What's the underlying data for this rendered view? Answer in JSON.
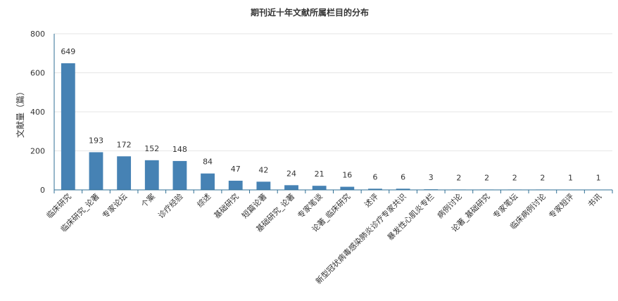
{
  "chart_data": {
    "type": "bar",
    "title": "期刊近十年文献所属栏目的分布",
    "ylabel": "文献量（篇）",
    "xlabel": "",
    "ylim": [
      0,
      800
    ],
    "yticks": [
      0,
      200,
      400,
      600,
      800
    ],
    "grid": true,
    "bar_color": "#4682b4",
    "categories": [
      "临床研究",
      "临床研究_论著",
      "专家论坛",
      "个案",
      "诊疗经验",
      "综述",
      "基础研究",
      "短篇论著",
      "基础研究_论著",
      "专家笔谈",
      "论著_临床研究",
      "述评",
      "新型冠状病毒感染肺炎诊疗专家共识",
      "暴发性心肌炎专栏",
      "病例讨论",
      "论著_基础研究",
      "专家笔坛",
      "临床病例讨论",
      "专家短评",
      "书讯"
    ],
    "values": [
      649,
      193,
      172,
      152,
      148,
      84,
      47,
      42,
      24,
      21,
      16,
      6,
      6,
      3,
      2,
      2,
      2,
      2,
      1,
      1
    ]
  }
}
